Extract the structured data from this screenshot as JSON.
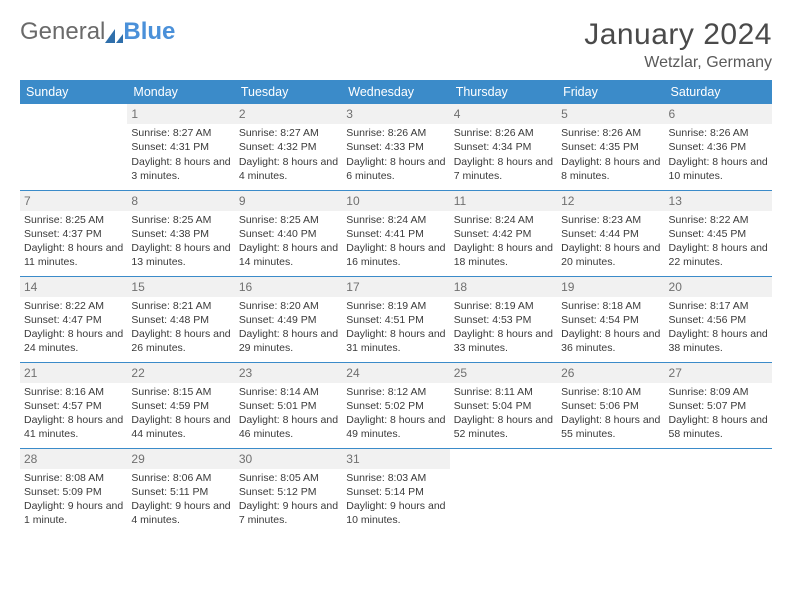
{
  "logo": {
    "general": "General",
    "blue": "Blue"
  },
  "title": "January 2024",
  "location": "Wetzlar, Germany",
  "colors": {
    "header_bg": "#3b8bc9",
    "header_text": "#ffffff",
    "daynum_bg": "#f1f1f1",
    "row_border": "#3b8bc9",
    "logo_blue": "#4a90d9",
    "text": "#3a3a3a"
  },
  "day_headers": [
    "Sunday",
    "Monday",
    "Tuesday",
    "Wednesday",
    "Thursday",
    "Friday",
    "Saturday"
  ],
  "weeks": [
    [
      {
        "empty": true
      },
      {
        "n": "1",
        "sunrise": "Sunrise: 8:27 AM",
        "sunset": "Sunset: 4:31 PM",
        "daylight": "Daylight: 8 hours and 3 minutes."
      },
      {
        "n": "2",
        "sunrise": "Sunrise: 8:27 AM",
        "sunset": "Sunset: 4:32 PM",
        "daylight": "Daylight: 8 hours and 4 minutes."
      },
      {
        "n": "3",
        "sunrise": "Sunrise: 8:26 AM",
        "sunset": "Sunset: 4:33 PM",
        "daylight": "Daylight: 8 hours and 6 minutes."
      },
      {
        "n": "4",
        "sunrise": "Sunrise: 8:26 AM",
        "sunset": "Sunset: 4:34 PM",
        "daylight": "Daylight: 8 hours and 7 minutes."
      },
      {
        "n": "5",
        "sunrise": "Sunrise: 8:26 AM",
        "sunset": "Sunset: 4:35 PM",
        "daylight": "Daylight: 8 hours and 8 minutes."
      },
      {
        "n": "6",
        "sunrise": "Sunrise: 8:26 AM",
        "sunset": "Sunset: 4:36 PM",
        "daylight": "Daylight: 8 hours and 10 minutes."
      }
    ],
    [
      {
        "n": "7",
        "sunrise": "Sunrise: 8:25 AM",
        "sunset": "Sunset: 4:37 PM",
        "daylight": "Daylight: 8 hours and 11 minutes."
      },
      {
        "n": "8",
        "sunrise": "Sunrise: 8:25 AM",
        "sunset": "Sunset: 4:38 PM",
        "daylight": "Daylight: 8 hours and 13 minutes."
      },
      {
        "n": "9",
        "sunrise": "Sunrise: 8:25 AM",
        "sunset": "Sunset: 4:40 PM",
        "daylight": "Daylight: 8 hours and 14 minutes."
      },
      {
        "n": "10",
        "sunrise": "Sunrise: 8:24 AM",
        "sunset": "Sunset: 4:41 PM",
        "daylight": "Daylight: 8 hours and 16 minutes."
      },
      {
        "n": "11",
        "sunrise": "Sunrise: 8:24 AM",
        "sunset": "Sunset: 4:42 PM",
        "daylight": "Daylight: 8 hours and 18 minutes."
      },
      {
        "n": "12",
        "sunrise": "Sunrise: 8:23 AM",
        "sunset": "Sunset: 4:44 PM",
        "daylight": "Daylight: 8 hours and 20 minutes."
      },
      {
        "n": "13",
        "sunrise": "Sunrise: 8:22 AM",
        "sunset": "Sunset: 4:45 PM",
        "daylight": "Daylight: 8 hours and 22 minutes."
      }
    ],
    [
      {
        "n": "14",
        "sunrise": "Sunrise: 8:22 AM",
        "sunset": "Sunset: 4:47 PM",
        "daylight": "Daylight: 8 hours and 24 minutes."
      },
      {
        "n": "15",
        "sunrise": "Sunrise: 8:21 AM",
        "sunset": "Sunset: 4:48 PM",
        "daylight": "Daylight: 8 hours and 26 minutes."
      },
      {
        "n": "16",
        "sunrise": "Sunrise: 8:20 AM",
        "sunset": "Sunset: 4:49 PM",
        "daylight": "Daylight: 8 hours and 29 minutes."
      },
      {
        "n": "17",
        "sunrise": "Sunrise: 8:19 AM",
        "sunset": "Sunset: 4:51 PM",
        "daylight": "Daylight: 8 hours and 31 minutes."
      },
      {
        "n": "18",
        "sunrise": "Sunrise: 8:19 AM",
        "sunset": "Sunset: 4:53 PM",
        "daylight": "Daylight: 8 hours and 33 minutes."
      },
      {
        "n": "19",
        "sunrise": "Sunrise: 8:18 AM",
        "sunset": "Sunset: 4:54 PM",
        "daylight": "Daylight: 8 hours and 36 minutes."
      },
      {
        "n": "20",
        "sunrise": "Sunrise: 8:17 AM",
        "sunset": "Sunset: 4:56 PM",
        "daylight": "Daylight: 8 hours and 38 minutes."
      }
    ],
    [
      {
        "n": "21",
        "sunrise": "Sunrise: 8:16 AM",
        "sunset": "Sunset: 4:57 PM",
        "daylight": "Daylight: 8 hours and 41 minutes."
      },
      {
        "n": "22",
        "sunrise": "Sunrise: 8:15 AM",
        "sunset": "Sunset: 4:59 PM",
        "daylight": "Daylight: 8 hours and 44 minutes."
      },
      {
        "n": "23",
        "sunrise": "Sunrise: 8:14 AM",
        "sunset": "Sunset: 5:01 PM",
        "daylight": "Daylight: 8 hours and 46 minutes."
      },
      {
        "n": "24",
        "sunrise": "Sunrise: 8:12 AM",
        "sunset": "Sunset: 5:02 PM",
        "daylight": "Daylight: 8 hours and 49 minutes."
      },
      {
        "n": "25",
        "sunrise": "Sunrise: 8:11 AM",
        "sunset": "Sunset: 5:04 PM",
        "daylight": "Daylight: 8 hours and 52 minutes."
      },
      {
        "n": "26",
        "sunrise": "Sunrise: 8:10 AM",
        "sunset": "Sunset: 5:06 PM",
        "daylight": "Daylight: 8 hours and 55 minutes."
      },
      {
        "n": "27",
        "sunrise": "Sunrise: 8:09 AM",
        "sunset": "Sunset: 5:07 PM",
        "daylight": "Daylight: 8 hours and 58 minutes."
      }
    ],
    [
      {
        "n": "28",
        "sunrise": "Sunrise: 8:08 AM",
        "sunset": "Sunset: 5:09 PM",
        "daylight": "Daylight: 9 hours and 1 minute."
      },
      {
        "n": "29",
        "sunrise": "Sunrise: 8:06 AM",
        "sunset": "Sunset: 5:11 PM",
        "daylight": "Daylight: 9 hours and 4 minutes."
      },
      {
        "n": "30",
        "sunrise": "Sunrise: 8:05 AM",
        "sunset": "Sunset: 5:12 PM",
        "daylight": "Daylight: 9 hours and 7 minutes."
      },
      {
        "n": "31",
        "sunrise": "Sunrise: 8:03 AM",
        "sunset": "Sunset: 5:14 PM",
        "daylight": "Daylight: 9 hours and 10 minutes."
      },
      {
        "empty": true
      },
      {
        "empty": true
      },
      {
        "empty": true
      }
    ]
  ]
}
